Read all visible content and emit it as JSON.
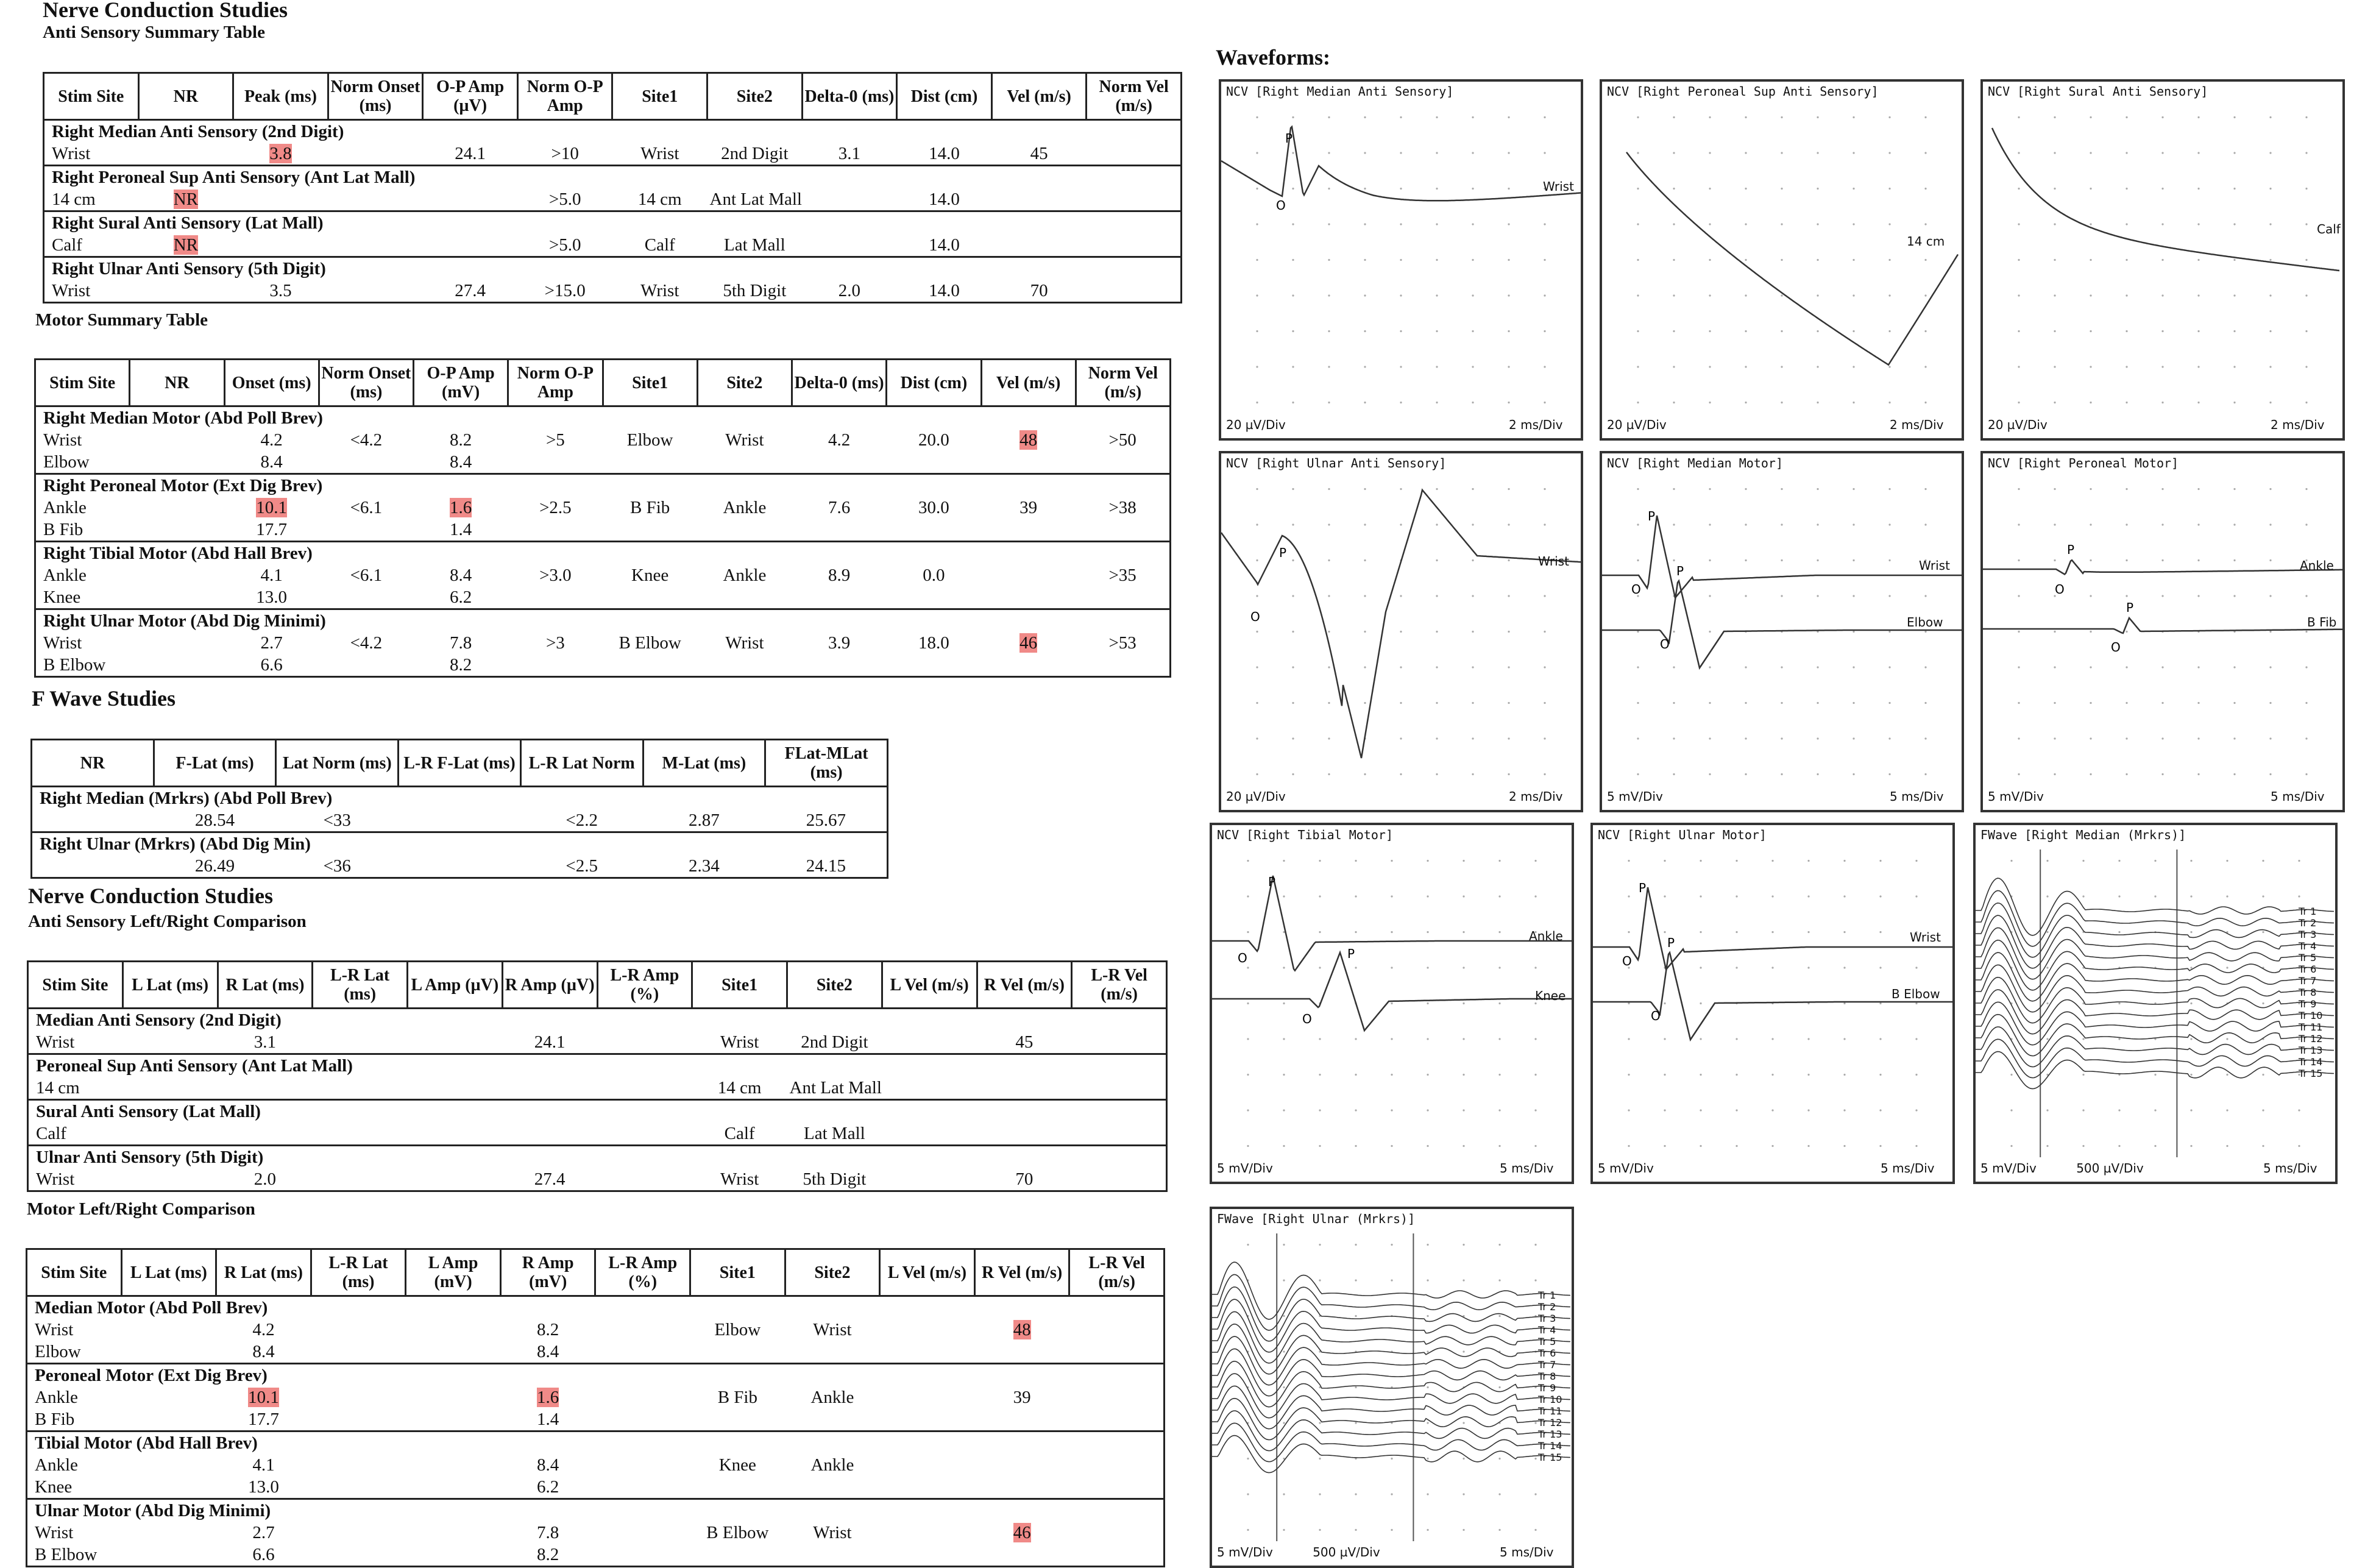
{
  "headings": {
    "ncs_title": "Nerve Conduction Studies",
    "anti_sensory_summary": "Anti Sensory Summary Table",
    "motor_summary": "Motor Summary Table",
    "f_wave_title": "F Wave Studies",
    "ncs_title_2": "Nerve Conduction Studies",
    "anti_sensory_lr": "Anti Sensory Left/Right Comparison",
    "motor_lr": "Motor Left/Right Comparison",
    "waveforms": "Waveforms:"
  },
  "sensory_summary": {
    "headers": [
      "Stim Site",
      "NR",
      "Peak (ms)",
      "Norm Onset (ms)",
      "O-P Amp (µV)",
      "Norm O-P Amp",
      "Site1",
      "Site2",
      "Delta-0 (ms)",
      "Dist (cm)",
      "Vel (m/s)",
      "Norm Vel (m/s)"
    ],
    "groups": [
      {
        "name": "Right Median Anti Sensory (2nd Digit)",
        "rows": [
          [
            "Wrist",
            "",
            "3.8",
            "",
            "24.1",
            ">10",
            "Wrist",
            "2nd Digit",
            "3.1",
            "14.0",
            "45",
            ""
          ]
        ]
      },
      {
        "name": "Right Peroneal Sup Anti Sensory (Ant Lat Mall)",
        "rows": [
          [
            "14 cm",
            "NR",
            "",
            "",
            "",
            ">5.0",
            "14 cm",
            "Ant Lat Mall",
            "",
            "14.0",
            "",
            ""
          ]
        ]
      },
      {
        "name": "Right Sural Anti Sensory (Lat Mall)",
        "rows": [
          [
            "Calf",
            "NR",
            "",
            "",
            "",
            ">5.0",
            "Calf",
            "Lat Mall",
            "",
            "14.0",
            "",
            ""
          ]
        ]
      },
      {
        "name": "Right Ulnar Anti Sensory (5th Digit)",
        "rows": [
          [
            "Wrist",
            "",
            "3.5",
            "",
            "27.4",
            ">15.0",
            "Wrist",
            "5th Digit",
            "2.0",
            "14.0",
            "70",
            ""
          ]
        ]
      }
    ]
  },
  "motor_summary": {
    "headers": [
      "Stim Site",
      "NR",
      "Onset (ms)",
      "Norm Onset (ms)",
      "O-P Amp (mV)",
      "Norm O-P Amp",
      "Site1",
      "Site2",
      "Delta-0 (ms)",
      "Dist (cm)",
      "Vel (m/s)",
      "Norm Vel (m/s)"
    ],
    "groups": [
      {
        "name": "Right Median Motor (Abd Poll Brev)",
        "rows": [
          [
            "Wrist",
            "",
            "4.2",
            "<4.2",
            "8.2",
            ">5",
            "Elbow",
            "Wrist",
            "4.2",
            "20.0",
            "48",
            ">50"
          ],
          [
            "Elbow",
            "",
            "8.4",
            "",
            "8.4",
            "",
            "",
            "",
            "",
            "",
            "",
            ""
          ]
        ]
      },
      {
        "name": "Right Peroneal Motor (Ext Dig Brev)",
        "rows": [
          [
            "Ankle",
            "",
            "10.1",
            "<6.1",
            "1.6",
            ">2.5",
            "B Fib",
            "Ankle",
            "7.6",
            "30.0",
            "39",
            ">38"
          ],
          [
            "B Fib",
            "",
            "17.7",
            "",
            "1.4",
            "",
            "",
            "",
            "",
            "",
            "",
            ""
          ]
        ]
      },
      {
        "name": "Right Tibial Motor (Abd Hall Brev)",
        "rows": [
          [
            "Ankle",
            "",
            "4.1",
            "<6.1",
            "8.4",
            ">3.0",
            "Knee",
            "Ankle",
            "8.9",
            "0.0",
            "",
            ">35"
          ],
          [
            "Knee",
            "",
            "13.0",
            "",
            "6.2",
            "",
            "",
            "",
            "",
            "",
            "",
            ""
          ]
        ]
      },
      {
        "name": "Right Ulnar Motor (Abd Dig Minimi)",
        "rows": [
          [
            "Wrist",
            "",
            "2.7",
            "<4.2",
            "7.8",
            ">3",
            "B Elbow",
            "Wrist",
            "3.9",
            "18.0",
            "46",
            ">53"
          ],
          [
            "B Elbow",
            "",
            "6.6",
            "",
            "8.2",
            "",
            "",
            "",
            "",
            "",
            "",
            ""
          ]
        ]
      }
    ]
  },
  "f_wave": {
    "headers": [
      "NR",
      "F-Lat (ms)",
      "Lat Norm (ms)",
      "L-R F-Lat (ms)",
      "L-R Lat Norm",
      "M-Lat (ms)",
      "FLat-MLat (ms)"
    ],
    "groups": [
      {
        "name": "Right Median (Mrkrs) (Abd Poll Brev)",
        "rows": [
          [
            "",
            "28.54",
            "<33",
            "",
            "<2.2",
            "2.87",
            "25.67"
          ]
        ]
      },
      {
        "name": "Right Ulnar (Mrkrs) (Abd Dig Min)",
        "rows": [
          [
            "",
            "26.49",
            "<36",
            "",
            "<2.5",
            "2.34",
            "24.15"
          ]
        ]
      }
    ]
  },
  "sensory_lr": {
    "headers": [
      "Stim Site",
      "L Lat (ms)",
      "R Lat (ms)",
      "L-R Lat (ms)",
      "L Amp (µV)",
      "R Amp (µV)",
      "L-R Amp (%)",
      "Site1",
      "Site2",
      "L Vel (m/s)",
      "R Vel (m/s)",
      "L-R Vel (m/s)"
    ],
    "groups": [
      {
        "name": "Median Anti Sensory (2nd Digit)",
        "rows": [
          [
            "Wrist",
            "",
            "3.1",
            "",
            "",
            "24.1",
            "",
            "Wrist",
            "2nd Digit",
            "",
            "45",
            ""
          ]
        ]
      },
      {
        "name": "Peroneal Sup Anti Sensory (Ant Lat Mall)",
        "rows": [
          [
            "14 cm",
            "",
            "",
            "",
            "",
            "",
            "",
            "14 cm",
            "Ant Lat Mall",
            "",
            "",
            ""
          ]
        ]
      },
      {
        "name": "Sural Anti Sensory (Lat Mall)",
        "rows": [
          [
            "Calf",
            "",
            "",
            "",
            "",
            "",
            "",
            "Calf",
            "Lat Mall",
            "",
            "",
            ""
          ]
        ]
      },
      {
        "name": "Ulnar Anti Sensory (5th Digit)",
        "rows": [
          [
            "Wrist",
            "",
            "2.0",
            "",
            "",
            "27.4",
            "",
            "Wrist",
            "5th Digit",
            "",
            "70",
            ""
          ]
        ]
      }
    ]
  },
  "motor_lr": {
    "headers": [
      "Stim Site",
      "L Lat (ms)",
      "R Lat (ms)",
      "L-R Lat (ms)",
      "L Amp (mV)",
      "R Amp (mV)",
      "L-R Amp (%)",
      "Site1",
      "Site2",
      "L Vel (m/s)",
      "R Vel (m/s)",
      "L-R Vel (m/s)"
    ],
    "groups": [
      {
        "name": "Median Motor (Abd Poll Brev)",
        "rows": [
          [
            "Wrist",
            "",
            "4.2",
            "",
            "",
            "8.2",
            "",
            "Elbow",
            "Wrist",
            "",
            "48",
            ""
          ],
          [
            "Elbow",
            "",
            "8.4",
            "",
            "",
            "8.4",
            "",
            "",
            "",
            "",
            "",
            ""
          ]
        ]
      },
      {
        "name": "Peroneal Motor (Ext Dig Brev)",
        "rows": [
          [
            "Ankle",
            "",
            "10.1",
            "",
            "",
            "1.6",
            "",
            "B Fib",
            "Ankle",
            "",
            "39",
            ""
          ],
          [
            "B Fib",
            "",
            "17.7",
            "",
            "",
            "1.4",
            "",
            "",
            "",
            "",
            "",
            ""
          ]
        ]
      },
      {
        "name": "Tibial Motor (Abd Hall Brev)",
        "rows": [
          [
            "Ankle",
            "",
            "4.1",
            "",
            "",
            "8.4",
            "",
            "Knee",
            "Ankle",
            "",
            "",
            ""
          ],
          [
            "Knee",
            "",
            "13.0",
            "",
            "",
            "6.2",
            "",
            "",
            "",
            "",
            "",
            ""
          ]
        ]
      },
      {
        "name": "Ulnar Motor (Abd Dig Minimi)",
        "rows": [
          [
            "Wrist",
            "",
            "2.7",
            "",
            "",
            "7.8",
            "",
            "B Elbow",
            "Wrist",
            "",
            "46",
            ""
          ],
          [
            "B Elbow",
            "",
            "6.6",
            "",
            "",
            "8.2",
            "",
            "",
            "",
            "",
            "",
            ""
          ]
        ]
      }
    ]
  },
  "highlight_color": "#f08a88",
  "panels": [
    {
      "title": "NCV [Right Median Anti Sensory]",
      "labels": [
        "Wrist"
      ],
      "scale_left": "20 µV/Div",
      "scale_mid": "",
      "scale_right": "2 ms/Div",
      "type": "sensory1"
    },
    {
      "title": "NCV [Right Peroneal Sup Anti Sensory]",
      "labels": [
        "14 cm"
      ],
      "scale_left": "20 µV/Div",
      "scale_mid": "",
      "scale_right": "2 ms/Div",
      "type": "decay1"
    },
    {
      "title": "NCV [Right Sural Anti Sensory]",
      "labels": [
        "Calf"
      ],
      "scale_left": "20 µV/Div",
      "scale_mid": "",
      "scale_right": "2 ms/Div",
      "type": "decay2"
    },
    {
      "title": "NCV [Right Ulnar Anti Sensory]",
      "labels": [
        "Wrist"
      ],
      "scale_left": "20 µV/Div",
      "scale_mid": "",
      "scale_right": "2 ms/Div",
      "type": "ulnar_sens"
    },
    {
      "title": "NCV [Right Median Motor]",
      "labels": [
        "Wrist",
        "Elbow"
      ],
      "scale_left": "5 mV/Div",
      "scale_mid": "",
      "scale_right": "5 ms/Div",
      "type": "motor2"
    },
    {
      "title": "NCV [Right Peroneal Motor]",
      "labels": [
        "Ankle",
        "B Fib"
      ],
      "scale_left": "5 mV/Div",
      "scale_mid": "",
      "scale_right": "5 ms/Div",
      "type": "motor_small"
    },
    {
      "title": "NCV [Right Tibial Motor]",
      "labels": [
        "Ankle",
        "Knee"
      ],
      "scale_left": "5 mV/Div",
      "scale_mid": "",
      "scale_right": "5 ms/Div",
      "type": "motor_tib"
    },
    {
      "title": "NCV [Right Ulnar Motor]",
      "labels": [
        "Wrist",
        "B Elbow"
      ],
      "scale_left": "5 mV/Div",
      "scale_mid": "",
      "scale_right": "5 ms/Div",
      "type": "motor2"
    },
    {
      "title": "FWave [Right Median (Mrkrs)]",
      "labels": [
        "Tr 1",
        "Tr 2",
        "Tr 3",
        "Tr 4",
        "Tr 5",
        "Tr 6",
        "Tr 7",
        "Tr 8",
        "Tr 9",
        "Tr 10",
        "Tr 11",
        "Tr 12",
        "Tr 13",
        "Tr 14",
        "Tr 15"
      ],
      "scale_left": "5 mV/Div",
      "scale_mid": "500 µV/Div",
      "scale_right": "5 ms/Div",
      "type": "fwave"
    },
    {
      "title": "FWave [Right Ulnar (Mrkrs)]",
      "labels": [
        "Tr 1",
        "Tr 2",
        "Tr 3",
        "Tr 4",
        "Tr 5",
        "Tr 6",
        "Tr 7",
        "Tr 8",
        "Tr 9",
        "Tr 10",
        "Tr 11",
        "Tr 12",
        "Tr 13",
        "Tr 14",
        "Tr 15"
      ],
      "scale_left": "5 mV/Div",
      "scale_mid": "500 µV/Div",
      "scale_right": "5 ms/Div",
      "type": "fwave"
    }
  ],
  "markers": {
    "peak": "P",
    "onset": "O"
  }
}
